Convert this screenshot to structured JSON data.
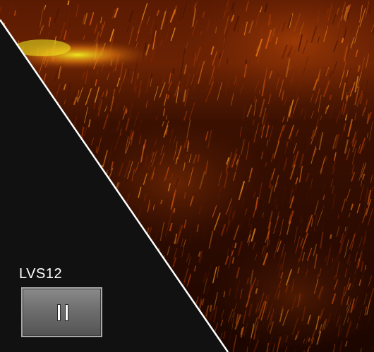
{
  "probe": {
    "label": "LVS12"
  },
  "controls": {
    "pause_icon": "pause-icon"
  },
  "colors": {
    "background": "#121212",
    "ultrasound_dark": "#1c0600",
    "ultrasound_mid": "#7a2a05",
    "ultrasound_bright": "#e07a10",
    "ultrasound_highlight": "#f4f020",
    "sector_edge": "#ffffff",
    "button_face": "#6e6e6e",
    "button_border": "#a9a9a9"
  }
}
